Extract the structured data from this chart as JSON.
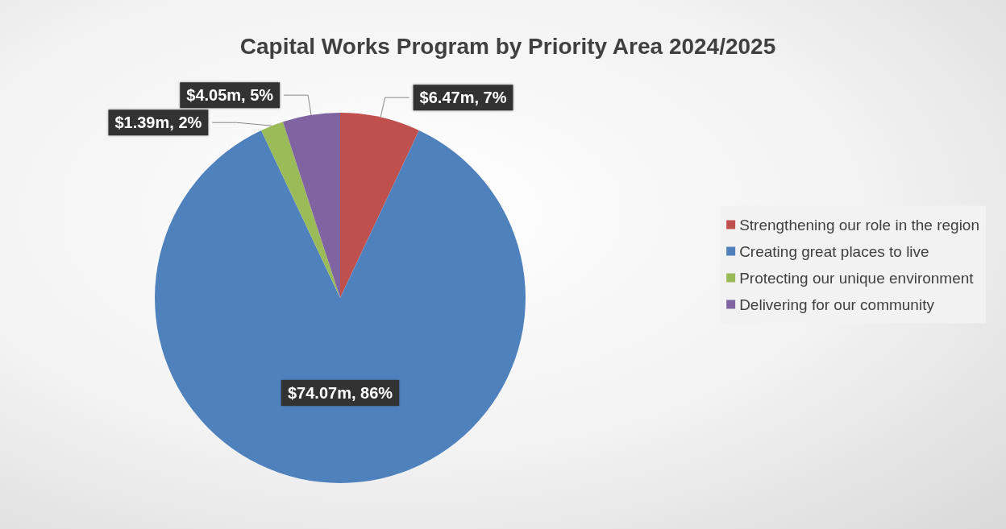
{
  "chart_data": {
    "type": "pie",
    "title": "Capital Works Program by Priority Area 2024/2025",
    "categories": [
      "Strengthening our role in the region",
      "Creating great places to live",
      "Protecting our unique environment",
      "Delivering for our community"
    ],
    "values": [
      7,
      86,
      2,
      5
    ],
    "colors": [
      "#c0504d",
      "#4f81bd",
      "#9bbb59",
      "#8064a2"
    ],
    "value_labels": [
      "$6.47m, 7%",
      "$74.07m, 86%",
      "$1.39m, 2%",
      "$4.05m, 5%"
    ],
    "legend": "right"
  }
}
